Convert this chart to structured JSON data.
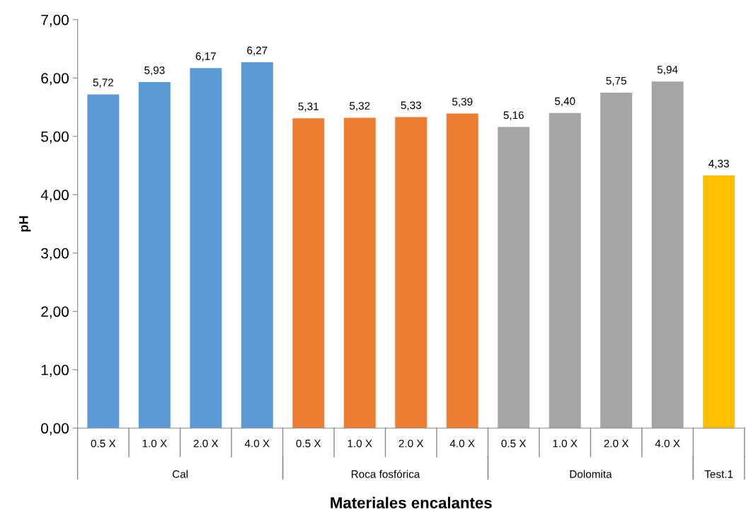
{
  "chart_data": {
    "type": "bar",
    "xlabel": "Materiales encalantes",
    "ylabel": "pH",
    "categories": [
      "0.5 X",
      "1.0 X",
      "2.0 X",
      "4.0 X",
      "0.5 X",
      "1.0 X",
      "2.0 X",
      "4.0 X",
      "0.5 X",
      "1.0 X",
      "2.0 X",
      "4.0 X",
      null
    ],
    "values": [
      5.72,
      5.93,
      6.17,
      6.27,
      5.31,
      5.32,
      5.33,
      5.39,
      5.16,
      5.4,
      5.75,
      5.94,
      4.33
    ],
    "value_labels": [
      "5,72",
      "5,93",
      "6,17",
      "6,27",
      "5,31",
      "5,32",
      "5,33",
      "5,39",
      "5,16",
      "5,40",
      "5,75",
      "5,94",
      "4,33"
    ],
    "colors": [
      "#5b9bd5",
      "#5b9bd5",
      "#5b9bd5",
      "#5b9bd5",
      "#ed7d31",
      "#ed7d31",
      "#ed7d31",
      "#ed7d31",
      "#a5a5a5",
      "#a5a5a5",
      "#a5a5a5",
      "#a5a5a5",
      "#ffc000"
    ],
    "annotations": [
      "Cal",
      "Roca fosfórica",
      "Dolomita",
      "Test.1"
    ],
    "ylim": [
      0,
      7
    ],
    "yticks": [
      {
        "value": 0,
        "label": "0,00"
      },
      {
        "value": 1,
        "label": "1,00"
      },
      {
        "value": 2,
        "label": "2,00"
      },
      {
        "value": 3,
        "label": "3,00"
      },
      {
        "value": 4,
        "label": "4,00"
      },
      {
        "value": 5,
        "label": "5,00"
      },
      {
        "value": 6,
        "label": "6,00"
      },
      {
        "value": 7,
        "label": "7,00"
      }
    ],
    "grid": false,
    "legend": false
  }
}
